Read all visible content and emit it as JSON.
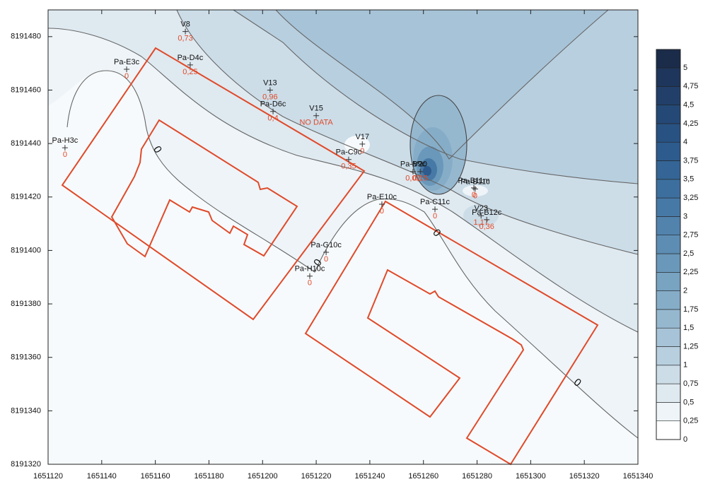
{
  "chart_data": {
    "type": "contour",
    "xlim": [
      1651120,
      1651340
    ],
    "ylim": [
      8191320,
      8191490
    ],
    "xticks": [
      1651120,
      1651140,
      1651160,
      1651180,
      1651200,
      1651220,
      1651240,
      1651260,
      1651280,
      1651300,
      1651320,
      1651340
    ],
    "yticks": [
      8191320,
      8191340,
      8191360,
      8191380,
      8191400,
      8191420,
      8191440,
      8191460,
      8191480
    ],
    "points": {
      "names": [
        "V8",
        "Pa-D4c",
        "Pa-E3c",
        "V13",
        "Pa-D6c",
        "V15",
        "Pa-H3c",
        "V17",
        "Pa-C9c",
        "Pa-B9c",
        "V20",
        "Pa-B11m",
        "Pa-B11c",
        "Pa-E10c",
        "Pa-C11c",
        "V23",
        "Pa-B12c",
        "Pa-G10c",
        "Pa-H10c"
      ],
      "x": [
        1651171.2,
        1651173,
        1651149.3,
        1651202.8,
        1651203.9,
        1651220,
        1651126.3,
        1651237.2,
        1651232.1,
        1651256.1,
        1651258.8,
        1651278.8,
        1651279.3,
        1651244.5,
        1651264.3,
        1651281.5,
        1651283.6,
        1651223.7,
        1651217.6
      ],
      "y": [
        8191481.9,
        8191469.4,
        8191467.8,
        8191460,
        8191452,
        8191450.4,
        8191438.4,
        8191439.8,
        8191434,
        8191429.5,
        8191429.5,
        8191423.4,
        8191423,
        8191417.3,
        8191415.4,
        8191413,
        8191411.5,
        8191399.3,
        8191390.4
      ],
      "values": [
        0.73,
        0.25,
        0,
        0.96,
        0.4,
        null,
        0,
        0,
        0.35,
        0.02,
        0.15,
        0,
        0,
        0,
        0,
        1.17,
        0.36,
        0,
        0
      ],
      "value_labels": [
        "0,73",
        "0,25",
        "0",
        "0,96",
        "0,4",
        "NO DATA",
        "0",
        "0",
        "0,35",
        "0,02",
        "0,15",
        "0",
        "0",
        "0",
        "0",
        "1,17",
        "0,36",
        "0",
        "0"
      ],
      "color": "#e04a2a"
    },
    "contour_labels": [
      "0",
      "0",
      "0",
      "0"
    ],
    "colorbar": {
      "ticks": [
        0,
        {
          "value": 0.25,
          "label": "0,25"
        },
        {
          "value": 0.5,
          "label": "0,5"
        },
        {
          "value": 0.75,
          "label": "0,75"
        },
        1,
        {
          "value": 1.25,
          "label": "1,25"
        },
        {
          "value": 1.5,
          "label": "1,5"
        },
        {
          "value": 1.75,
          "label": "1,75"
        },
        2,
        {
          "value": 2.25,
          "label": "2,25"
        },
        {
          "value": 2.5,
          "label": "2,5"
        },
        {
          "value": 2.75,
          "label": "2,75"
        },
        3,
        {
          "value": 3.25,
          "label": "3,25"
        },
        {
          "value": 3.5,
          "label": "3,5"
        },
        {
          "value": 3.75,
          "label": "3,75"
        },
        4,
        {
          "value": 4.25,
          "label": "4,25"
        },
        {
          "value": 4.5,
          "label": "4,5"
        },
        {
          "value": 4.75,
          "label": "4,75"
        },
        5
      ],
      "colors": [
        "#ffffff",
        "#eef4f8",
        "#dfe9f0",
        "#ccdde8",
        "#b8cfdf",
        "#a7c3d7",
        "#96b8cf",
        "#86adc8",
        "#78a3c1",
        "#6a98ba",
        "#5d8db3",
        "#5283ad",
        "#4779a6",
        "#3d6f9e",
        "#346596",
        "#2d5b8d",
        "#285282",
        "#244976",
        "#213f69",
        "#1e365b",
        "#1b2c4a"
      ]
    }
  }
}
